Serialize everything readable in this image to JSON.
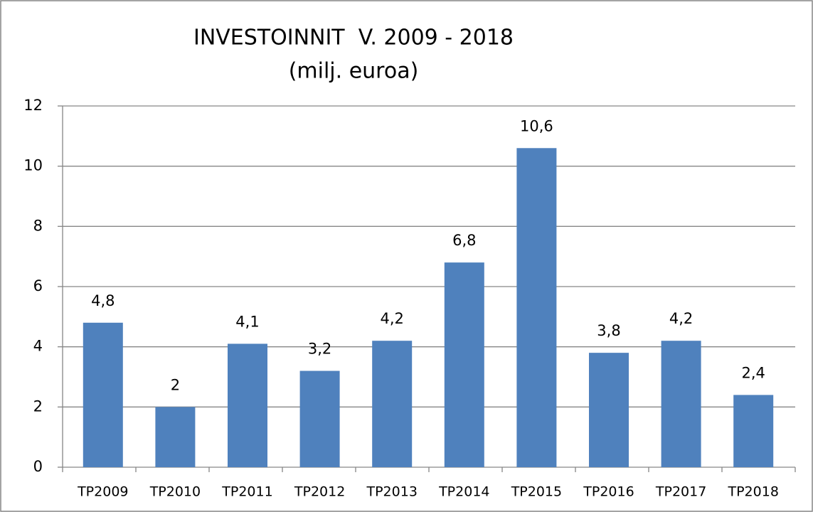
{
  "chart_data": {
    "type": "bar",
    "title": "INVESTOINNIT  V. 2009 - 2018",
    "subtitle": "(milj. euroa)",
    "categories": [
      "TP2009",
      "TP2010",
      "TP2011",
      "TP2012",
      "TP2013",
      "TP2014",
      "TP2015",
      "TP2016",
      "TP2017",
      "TP2018"
    ],
    "values": [
      4.8,
      2,
      4.1,
      3.2,
      4.2,
      6.8,
      10.6,
      3.8,
      4.2,
      2.4
    ],
    "value_labels": [
      "4,8",
      "2",
      "4,1",
      "3,2",
      "4,2",
      "6,8",
      "10,6",
      "3,8",
      "4,2",
      "2,4"
    ],
    "color": "#4f81bd",
    "ylim": [
      0,
      12
    ],
    "yticks": [
      0,
      2,
      4,
      6,
      8,
      10,
      12
    ],
    "grid": true
  }
}
